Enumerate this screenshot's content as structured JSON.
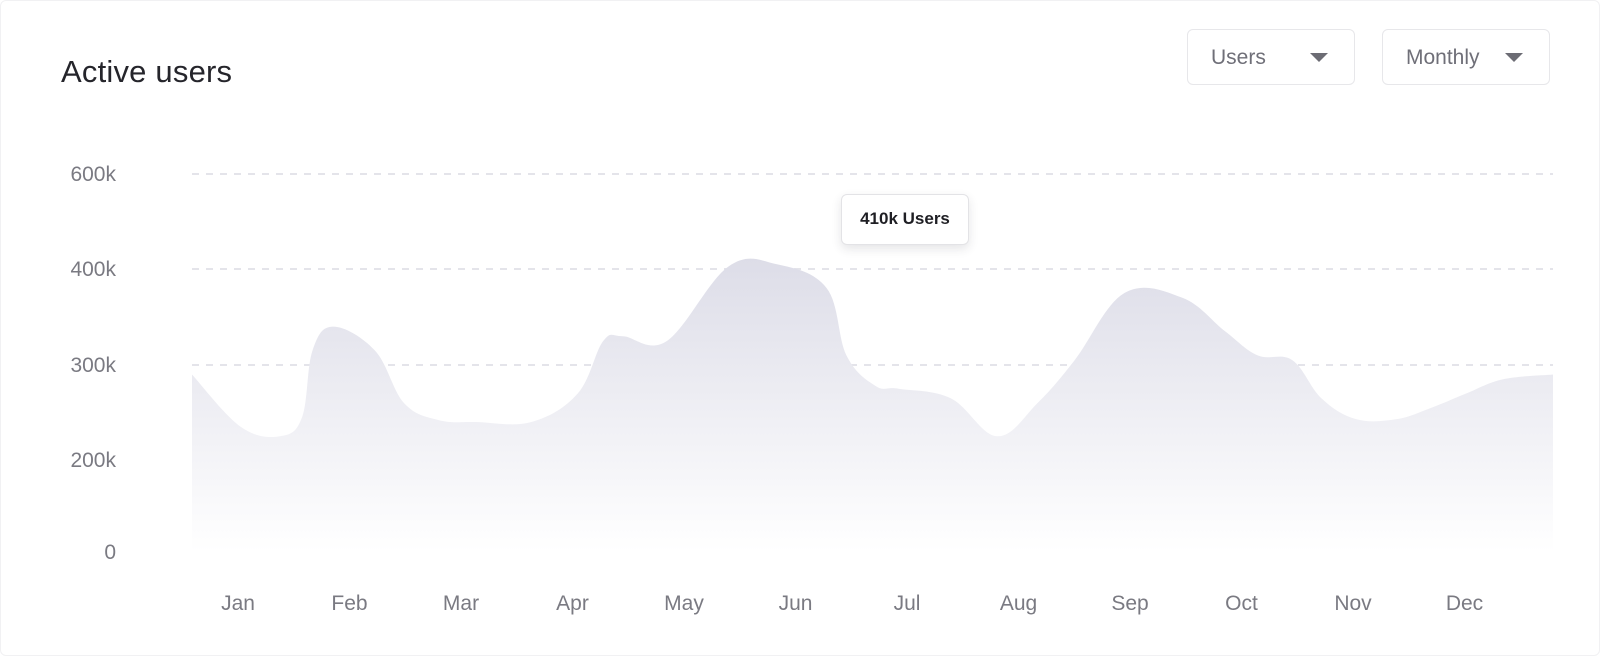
{
  "header": {
    "title": "Active users"
  },
  "filters": {
    "metric": {
      "label": "Users",
      "icon": "caret-down-icon"
    },
    "period": {
      "label": "Monthly",
      "icon": "caret-down-icon"
    }
  },
  "tooltip": {
    "text": "410k Users"
  },
  "colors": {
    "area_top": "#dddde8",
    "area_bottom": "#ffffff",
    "grid": "#e4e4ea",
    "tick_text": "#7a7a82",
    "title_text": "#25252b"
  },
  "chart_data": {
    "type": "area",
    "title": "Active users",
    "grid": true,
    "y_ticks": [
      {
        "label": "0",
        "value": 0
      },
      {
        "label": "200k",
        "value": 200000
      },
      {
        "label": "300k",
        "value": 300000
      },
      {
        "label": "400k",
        "value": 400000
      },
      {
        "label": "600k",
        "value": 600000
      }
    ],
    "gridline_values": [
      200000,
      300000,
      400000,
      600000
    ],
    "categories": [
      "Jan",
      "Feb",
      "Mar",
      "Apr",
      "May",
      "Jun",
      "Jul",
      "Aug",
      "Sep",
      "Oct",
      "Nov",
      "Dec"
    ],
    "series": [
      {
        "x": [
          0.0,
          0.42,
          0.76,
          0.95,
          1.04,
          1.22,
          1.58,
          1.83,
          2.13,
          2.45,
          2.93,
          3.33,
          3.55,
          3.72,
          4.1,
          4.63,
          5.05,
          5.48,
          5.65,
          5.9,
          6.1,
          6.55,
          6.95,
          7.3,
          7.62,
          8.05,
          8.55,
          8.92,
          9.2,
          9.5,
          9.75,
          10.05,
          10.4,
          10.7,
          11.0,
          11.32,
          11.75
        ],
        "y": [
          290000,
          235000,
          225000,
          245000,
          315000,
          340000,
          315000,
          260000,
          242000,
          240000,
          240000,
          270000,
          325000,
          330000,
          325000,
          405000,
          410000,
          380000,
          310000,
          278000,
          275000,
          265000,
          225000,
          260000,
          305000,
          375000,
          370000,
          335000,
          310000,
          305000,
          265000,
          243000,
          243000,
          255000,
          270000,
          285000,
          290000
        ]
      }
    ]
  }
}
